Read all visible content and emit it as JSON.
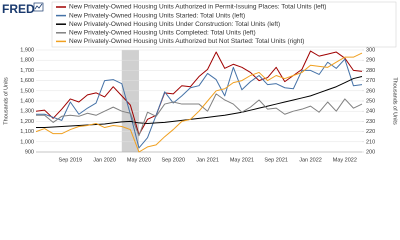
{
  "logo": "FRED",
  "chart_data": {
    "type": "line",
    "categories": [
      null,
      null,
      null,
      null,
      "Sep 2019",
      null,
      null,
      null,
      "Jan 2020",
      null,
      null,
      null,
      "May 2020",
      null,
      null,
      null,
      "Sep 2020",
      null,
      null,
      null,
      "Jan 2021",
      null,
      null,
      null,
      "May 2021",
      null,
      null,
      null,
      "Sep 2021",
      null,
      null,
      null,
      "Jan 2022",
      null,
      null,
      null,
      "May 2022",
      null,
      null
    ],
    "shading": {
      "from": 10,
      "to": 12
    },
    "ylabel": "Thousands of Units",
    "y2label": "Thousands of Units",
    "ylim": [
      900,
      1900
    ],
    "yticks": [
      {
        "value": 900,
        "label": "900"
      },
      {
        "value": 1000,
        "label": "1,000"
      },
      {
        "value": 1100,
        "label": "1,100"
      },
      {
        "value": 1200,
        "label": "1,200"
      },
      {
        "value": 1300,
        "label": "1,300"
      },
      {
        "value": 1400,
        "label": "1,400"
      },
      {
        "value": 1500,
        "label": "1,500"
      },
      {
        "value": 1600,
        "label": "1,600"
      },
      {
        "value": 1700,
        "label": "1,700"
      },
      {
        "value": 1800,
        "label": "1,800"
      },
      {
        "value": 1900,
        "label": "1,900"
      }
    ],
    "y2lim": [
      200,
      300
    ],
    "y2ticks": [
      200,
      210,
      220,
      230,
      240,
      250,
      260,
      270,
      280,
      290,
      300
    ],
    "grid": true,
    "series": [
      {
        "name": "New Privately-Owned Housing Units Authorized in Permit-Issuing Places: Total Units (left)",
        "color": "#a00000",
        "values": [
          1300,
          1310,
          1230,
          1320,
          1420,
          1390,
          1460,
          1480,
          1440,
          1540,
          1450,
          1360,
          1070,
          1220,
          1260,
          1480,
          1470,
          1550,
          1540,
          1640,
          1710,
          1880,
          1720,
          1760,
          1730,
          1680,
          1600,
          1630,
          1730,
          1590,
          1650,
          1710,
          1890,
          1840,
          1860,
          1880,
          1820,
          1700,
          1690
        ]
      },
      {
        "name": "New Privately-Owned Housing Units Started: Total Units (left)",
        "color": "#4572a7",
        "values": [
          1270,
          1270,
          1240,
          1210,
          1390,
          1270,
          1330,
          1380,
          1600,
          1610,
          1570,
          1270,
          940,
          1040,
          1260,
          1490,
          1380,
          1450,
          1530,
          1550,
          1670,
          1610,
          1450,
          1730,
          1510,
          1590,
          1650,
          1560,
          1570,
          1530,
          1520,
          1700,
          1700,
          1660,
          1780,
          1720,
          1810,
          1550,
          1560
        ]
      },
      {
        "name": "New Privately-Owned Housing Units Under Construction: Total Units (left)",
        "color": "#000000",
        "values": [
          1140,
          1140,
          1145,
          1150,
          1155,
          1160,
          1165,
          1170,
          1175,
          1185,
          1195,
          1200,
          1185,
          1180,
          1185,
          1190,
          1200,
          1210,
          1220,
          1230,
          1240,
          1250,
          1260,
          1275,
          1290,
          1310,
          1330,
          1350,
          1370,
          1390,
          1410,
          1430,
          1450,
          1480,
          1510,
          1540,
          1580,
          1620,
          1640
        ]
      },
      {
        "name": "New Privately-Owned Housing Units Completed: Total Units (left)",
        "color": "#808080",
        "values": [
          1260,
          1260,
          1190,
          1250,
          1260,
          1250,
          1280,
          1260,
          1300,
          1340,
          1300,
          1280,
          1060,
          1290,
          1250,
          1370,
          1390,
          1370,
          1370,
          1370,
          1300,
          1470,
          1410,
          1370,
          1290,
          1340,
          1410,
          1320,
          1330,
          1270,
          1300,
          1320,
          1350,
          1290,
          1390,
          1300,
          1420,
          1330,
          1370
        ]
      },
      {
        "name": "New Privately-Owned Housing Units Authorized but Not Started: Total Units (right)",
        "color": "#f0a020",
        "axis": "y2",
        "values": [
          220,
          223,
          218,
          218,
          222,
          225,
          226,
          228,
          224,
          226,
          225,
          222,
          200,
          205,
          207,
          215,
          222,
          230,
          232,
          240,
          250,
          260,
          262,
          268,
          270,
          275,
          278,
          270,
          275,
          272,
          275,
          278,
          285,
          284,
          283,
          288,
          293,
          293,
          297
        ]
      }
    ]
  }
}
